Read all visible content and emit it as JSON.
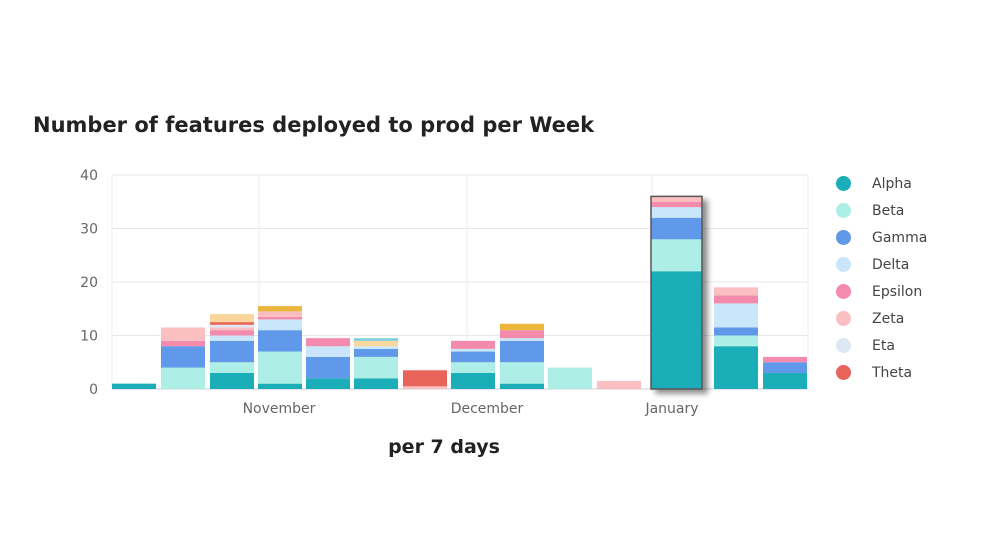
{
  "chart_data": {
    "type": "bar",
    "stacked": true,
    "title": "Number of features deployed to prod per Week",
    "xlabel": "per 7 days",
    "ylabel": "",
    "ylim": [
      0,
      40
    ],
    "yticks": [
      0,
      10,
      20,
      30,
      40
    ],
    "grid": true,
    "legend": "right",
    "x_tick_labels": [
      "November",
      "December",
      "January"
    ],
    "highlighted_bar": 11,
    "series": [
      {
        "name": "Alpha",
        "color": "#1baeb8",
        "values": [
          1,
          0,
          3,
          1,
          2,
          2,
          0,
          3,
          1,
          0,
          0,
          22,
          8,
          3
        ]
      },
      {
        "name": "Beta",
        "color": "#adeee6",
        "values": [
          0,
          4,
          2,
          6,
          0,
          4,
          0,
          2,
          4,
          4,
          0,
          6,
          2,
          0
        ]
      },
      {
        "name": "Gamma",
        "color": "#6199ea",
        "values": [
          0,
          4,
          4,
          4,
          4,
          1.5,
          0,
          2,
          4,
          0,
          0,
          4,
          1.5,
          2
        ]
      },
      {
        "name": "Delta",
        "color": "#cae6fa",
        "values": [
          0,
          0,
          1,
          2,
          2,
          0.5,
          0,
          0.5,
          0.5,
          0,
          0,
          2,
          4.5,
          0
        ]
      },
      {
        "name": "Epsilon",
        "color": "#f48bad",
        "values": [
          0,
          1,
          1,
          0.5,
          1.5,
          0,
          0,
          1.5,
          1.5,
          0,
          0,
          1,
          1.5,
          1
        ]
      },
      {
        "name": "Zeta",
        "color": "#fbbfc2",
        "values": [
          0,
          2.5,
          0.5,
          1,
          0,
          0,
          0.5,
          0,
          0,
          0,
          1.5,
          1,
          1.5,
          0
        ]
      },
      {
        "name": "Eta",
        "color": "#dde8f4",
        "values": [
          0,
          0,
          0.5,
          0,
          0,
          0,
          0,
          0,
          0,
          0,
          0,
          0,
          0,
          0
        ]
      },
      {
        "name": "Theta",
        "color": "#e8645a",
        "values": [
          0,
          0,
          0.5,
          0,
          0,
          0,
          3,
          0,
          0,
          0,
          0,
          0,
          0,
          0
        ]
      },
      {
        "name": "",
        "color": "#f8d69c",
        "values": [
          0,
          0,
          1.5,
          0,
          0,
          1,
          0,
          0,
          0,
          0,
          0,
          0,
          0,
          0
        ]
      },
      {
        "name": "",
        "color": "#ecb73e",
        "values": [
          0,
          0,
          0,
          1,
          0,
          0,
          0,
          0,
          1.2,
          0,
          0,
          0,
          0,
          0
        ]
      },
      {
        "name": "",
        "color": "#7fcfdc",
        "values": [
          0,
          0,
          0,
          0,
          0,
          0.5,
          0,
          0,
          0,
          0,
          0,
          0,
          0,
          0
        ]
      }
    ]
  }
}
